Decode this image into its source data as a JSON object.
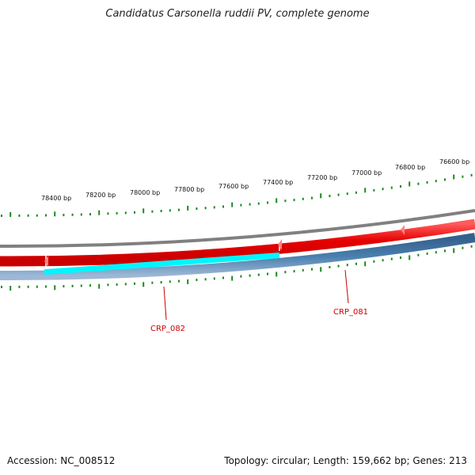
{
  "title": "Candidatus Carsonella ruddii PV, complete genome",
  "footer": {
    "accession": "Accession: NC_008512",
    "summary": "Topology: circular; Length: 159,662 bp; Genes: 213"
  },
  "colors": {
    "background": "#ffffff",
    "tick": "#1a8a1a",
    "backbone": "#808080",
    "forward_strand": "#e60000",
    "reverse_strand": "#4a7fae",
    "highlight_gene": "#00f5ff",
    "gene_label": "#cc0000"
  },
  "ruler": {
    "labels": [
      "78400 bp",
      "78200 bp",
      "78000 bp",
      "77800 bp",
      "77600 bp",
      "77400 bp",
      "77200 bp",
      "77000 bp",
      "76800 bp",
      "76600 bp"
    ]
  },
  "gene_labels": [
    "CRP_082",
    "CRP_081"
  ]
}
